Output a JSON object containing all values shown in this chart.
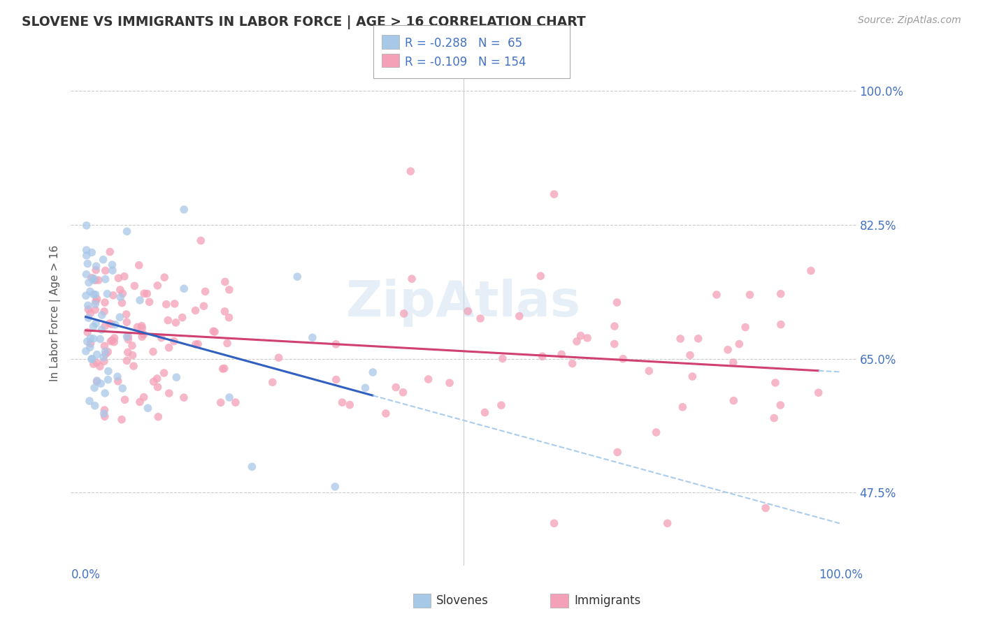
{
  "title": "SLOVENE VS IMMIGRANTS IN LABOR FORCE | AGE > 16 CORRELATION CHART",
  "source": "Source: ZipAtlas.com",
  "ylabel": "In Labor Force | Age > 16",
  "ytick_vals": [
    0.475,
    0.65,
    0.825,
    1.0
  ],
  "ytick_labels": [
    "47.5%",
    "65.0%",
    "82.5%",
    "100.0%"
  ],
  "xlim": [
    -0.02,
    1.02
  ],
  "ylim": [
    0.38,
    1.04
  ],
  "legend_slovene_label": "Slovenes",
  "legend_immigrant_label": "Immigrants",
  "R_slovene": -0.288,
  "N_slovene": 65,
  "R_immigrant": -0.109,
  "N_immigrant": 154,
  "slovene_color": "#a8c8e8",
  "immigrant_color": "#f4a0b8",
  "slovene_line_color": "#3060c0",
  "immigrant_line_color": "#d04070",
  "dashed_color": "#aaccee",
  "background_color": "#ffffff",
  "grid_color": "#cccccc",
  "watermark": "ZipAtlas",
  "title_color": "#333333",
  "source_color": "#999999",
  "ylabel_color": "#555555",
  "tick_color": "#4472c4",
  "legend_box_color": "#aaaaaa"
}
